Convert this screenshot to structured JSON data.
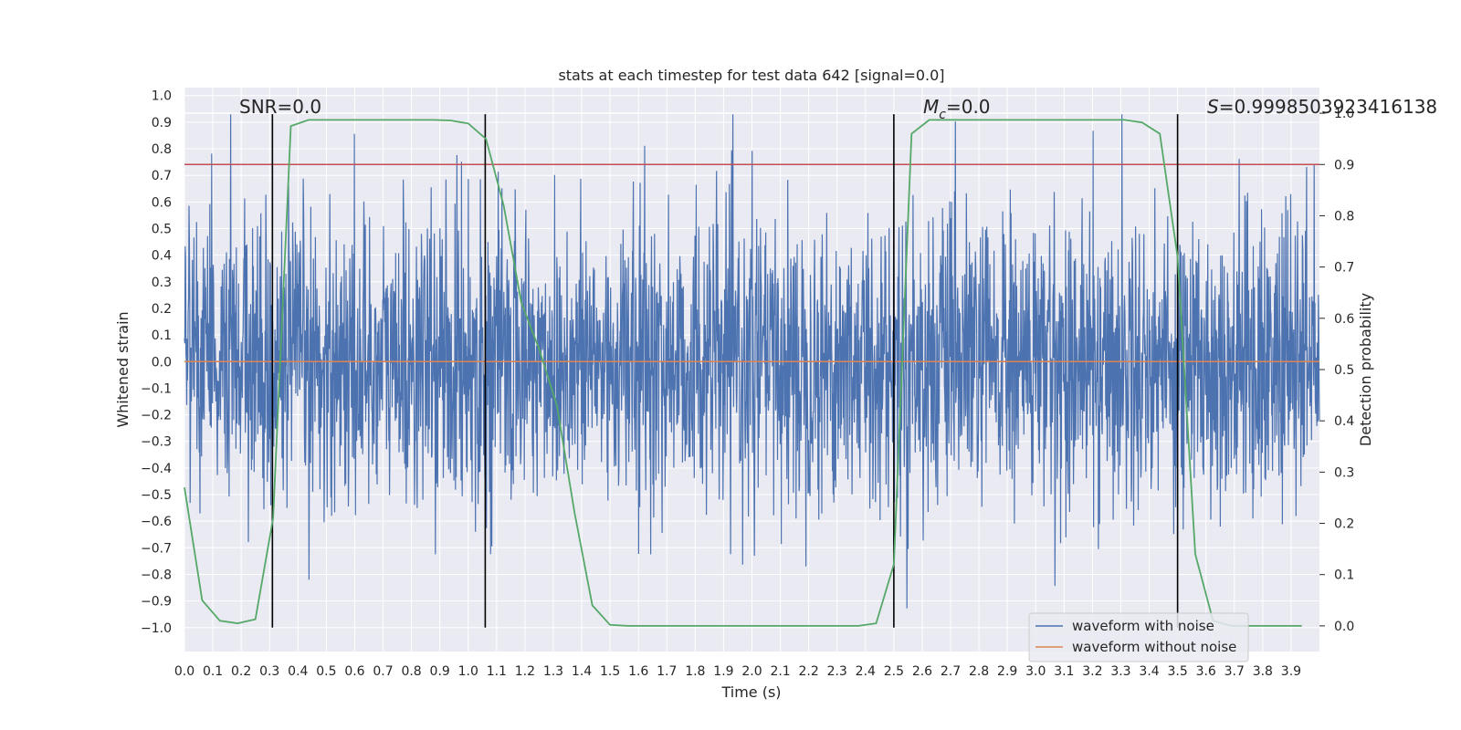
{
  "chart_data": {
    "type": "line",
    "title": "stats at each timestep for test data 642 [signal=0.0]",
    "xlabel": "Time (s)",
    "ylabel": "Whitened strain",
    "y2label": "Detection probability",
    "xlim": [
      0.0,
      4.0
    ],
    "ylim": [
      -1.09,
      1.03
    ],
    "y2lim": [
      -0.05,
      1.05
    ],
    "xticks": [
      "0.0",
      "0.1",
      "0.2",
      "0.3",
      "0.4",
      "0.5",
      "0.6",
      "0.7",
      "0.8",
      "0.9",
      "1.0",
      "1.1",
      "1.2",
      "1.3",
      "1.4",
      "1.5",
      "1.6",
      "1.7",
      "1.8",
      "1.9",
      "2.0",
      "2.1",
      "2.2",
      "2.3",
      "2.4",
      "2.5",
      "2.6",
      "2.7",
      "2.8",
      "2.9",
      "3.0",
      "3.1",
      "3.2",
      "3.3",
      "3.4",
      "3.5",
      "3.6",
      "3.7",
      "3.8",
      "3.9"
    ],
    "yticks": [
      "1.0",
      "0.9",
      "0.8",
      "0.7",
      "0.6",
      "0.5",
      "0.4",
      "0.3",
      "0.2",
      "0.1",
      "0.0",
      "−0.1",
      "−0.2",
      "−0.3",
      "−0.4",
      "−0.5",
      "−0.6",
      "−0.7",
      "−0.8",
      "−0.9",
      "−1.0"
    ],
    "y2ticks": [
      "1.0",
      "0.9",
      "0.8",
      "0.7",
      "0.6",
      "0.5",
      "0.4",
      "0.3",
      "0.2",
      "0.1",
      "0.0"
    ],
    "grid": true,
    "legend_position": "lower right",
    "annotations": {
      "snr": "SNR=0.0",
      "mc_symbol": "M",
      "mc_sub": "c",
      "mc_value": "=0.0",
      "s_symbol": "S",
      "s_value": "=0.999850392341613​8"
    },
    "series": [
      {
        "name": "waveform with noise",
        "color": "#4c72b0",
        "kind": "noise",
        "approx_amplitude": 0.35,
        "extreme_range": [
          -1.0,
          0.93
        ]
      },
      {
        "name": "waveform without noise",
        "color": "#dd8452",
        "x": [
          0.0,
          4.0
        ],
        "y": [
          0.0,
          0.0
        ]
      },
      {
        "name": "detection probability",
        "axis": "right",
        "color": "#55a868",
        "x": [
          0.0,
          0.0625,
          0.125,
          0.1875,
          0.25,
          0.3125,
          0.375,
          0.4375,
          0.5,
          0.5625,
          0.625,
          0.6875,
          0.75,
          0.8125,
          0.875,
          0.9375,
          1.0,
          1.0625,
          1.125,
          1.1875,
          1.25,
          1.3125,
          1.375,
          1.4375,
          1.5,
          1.5625,
          1.625,
          1.6875,
          1.75,
          1.8125,
          1.875,
          1.9375,
          2.0,
          2.0625,
          2.125,
          2.1875,
          2.25,
          2.3125,
          2.375,
          2.4375,
          2.5,
          2.5625,
          2.625,
          2.6875,
          2.75,
          2.8125,
          2.875,
          2.9375,
          3.0,
          3.0625,
          3.125,
          3.1875,
          3.25,
          3.3125,
          3.375,
          3.4375,
          3.5,
          3.5625,
          3.625,
          3.6875,
          3.75,
          3.8125,
          3.875,
          3.9375
        ],
        "y": [
          0.27,
          0.05,
          0.01,
          0.005,
          0.013,
          0.21,
          0.975,
          0.987,
          0.987,
          0.987,
          0.987,
          0.987,
          0.987,
          0.987,
          0.987,
          0.986,
          0.98,
          0.95,
          0.82,
          0.63,
          0.54,
          0.43,
          0.22,
          0.04,
          0.002,
          0.0,
          0.0,
          0.0,
          0.0,
          0.0,
          0.0,
          0.0,
          0.0,
          0.0,
          0.0,
          0.0,
          0.0,
          0.0,
          0.0,
          0.005,
          0.12,
          0.96,
          0.987,
          0.987,
          0.987,
          0.987,
          0.987,
          0.987,
          0.987,
          0.987,
          0.987,
          0.987,
          0.987,
          0.987,
          0.982,
          0.96,
          0.72,
          0.14,
          0.01,
          0.0,
          0.0,
          0.0,
          0.0,
          0.0
        ]
      }
    ],
    "hlines": [
      {
        "axis": "right",
        "y": 0.9,
        "color": "#c44e52"
      },
      {
        "axis": "right",
        "y": 1.0,
        "color": "#ffffff"
      }
    ],
    "vlines": [
      {
        "x": 0.31,
        "color": "#000000"
      },
      {
        "x": 1.06,
        "color": "#000000"
      },
      {
        "x": 2.5,
        "color": "#000000"
      },
      {
        "x": 3.5,
        "color": "#000000"
      }
    ]
  }
}
